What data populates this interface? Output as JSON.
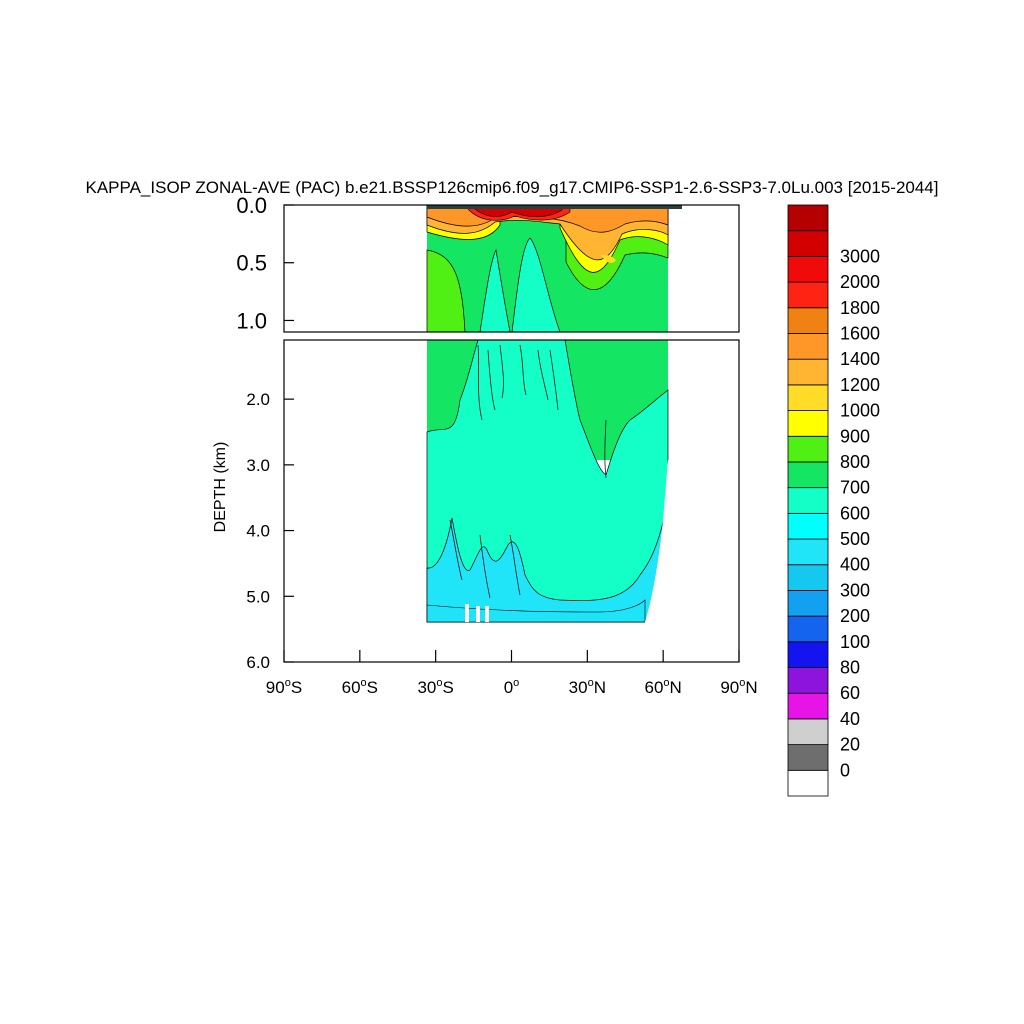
{
  "chart_data": {
    "type": "heatmap",
    "title": "KAPPA_ISOP ZONAL-AVE (PAC) b.e21.BSSP126cmip6.f09_g17.CMIP6-SSP1-2.6-SSP3-7.0Lu.003 [2015-2044]",
    "ylabel": "DEPTH (km)",
    "xlabel": "",
    "xlim": [
      -90,
      90
    ],
    "x_ticks": [
      {
        "value": -90,
        "deg": "90",
        "hemi": "S"
      },
      {
        "value": -60,
        "deg": "60",
        "hemi": "S"
      },
      {
        "value": -30,
        "deg": "30",
        "hemi": "S"
      },
      {
        "value": 0,
        "deg": "0",
        "hemi": ""
      },
      {
        "value": 30,
        "deg": "30",
        "hemi": "N"
      },
      {
        "value": 60,
        "deg": "60",
        "hemi": "N"
      },
      {
        "value": 90,
        "deg": "90",
        "hemi": "N"
      }
    ],
    "upper_panel": {
      "ylim": [
        0.0,
        1.1
      ],
      "y_ticks": [
        {
          "value": 0.0,
          "label": "0.0"
        },
        {
          "value": 0.5,
          "label": "0.5"
        },
        {
          "value": 1.0,
          "label": "1.0"
        }
      ]
    },
    "lower_panel": {
      "ylim": [
        1.1,
        6.0
      ],
      "y_ticks": [
        {
          "value": 2.0,
          "label": "2.0"
        },
        {
          "value": 3.0,
          "label": "3.0"
        },
        {
          "value": 4.0,
          "label": "4.0"
        },
        {
          "value": 5.0,
          "label": "5.0"
        },
        {
          "value": 6.0,
          "label": "6.0"
        }
      ]
    },
    "ocean_extent": {
      "lat_min": -34,
      "lat_max": 62,
      "max_depth_km": 5.37
    },
    "colorbar": {
      "colors": [
        "#ffffff",
        "#6e6e6e",
        "#cfcfcf",
        "#e614e6",
        "#8c14dc",
        "#1414f0",
        "#1464f0",
        "#14a0f0",
        "#14c8f0",
        "#20e4f8",
        "#00ffff",
        "#14ffc8",
        "#14e664",
        "#50f014",
        "#ffff00",
        "#ffdc28",
        "#ffb432",
        "#ff9628",
        "#f08214",
        "#ff2314",
        "#f00a0a",
        "#d20000",
        "#b40000"
      ],
      "labels": [
        "0",
        "20",
        "40",
        "60",
        "80",
        "100",
        "200",
        "300",
        "400",
        "500",
        "600",
        "700",
        "800",
        "900",
        "1000",
        "1200",
        "1400",
        "1600",
        "1800",
        "2000",
        "3000"
      ]
    }
  }
}
